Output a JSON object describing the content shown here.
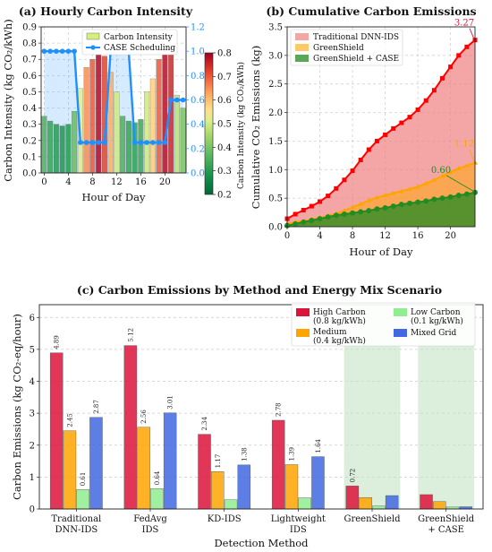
{
  "panel_a": {
    "title": "(a) Hourly Carbon Intensity",
    "xlabel": "Hour of Day",
    "ylabel": "Carbon Intensity (kg CO₂/kWh)",
    "colorbar_label": "Carbon Intensity (kg CO₂/kWh)",
    "legend": [
      "Carbon Intensity",
      "CASE Scheduling"
    ]
  },
  "panel_b": {
    "title": "(b) Cumulative Carbon Emissions",
    "xlabel": "Hour of Day",
    "ylabel": "Cumulative CO₂ Emissions (kg)",
    "legend": [
      "Traditional DNN-IDS",
      "GreenShield",
      "GreenShield + CASE"
    ],
    "annotations": [
      "3.27",
      "1.12",
      "0.60"
    ]
  },
  "panel_c": {
    "title": "(c) Carbon Emissions by Method and Energy Mix Scenario",
    "xlabel": "Detection Method",
    "ylabel": "Carbon Emissions (kg CO₂-eq/hour)",
    "legend": [
      "High Carbon",
      "(0.8 kg/kWh)",
      "Medium",
      "(0.4 kg/kWh)",
      "Low Carbon",
      "(0.1 kg/kWh)",
      "Mixed Grid"
    ],
    "methods_line1": [
      "Traditional",
      "FedAvg",
      "KD-IDS",
      "Lightweight",
      "GreenShield",
      "GreenShield"
    ],
    "methods_line2": [
      "DNN-IDS",
      "IDS",
      "",
      "IDS",
      "",
      "+ CASE"
    ]
  },
  "chart_data": [
    {
      "type": "bar",
      "x": [
        0,
        1,
        2,
        3,
        4,
        5,
        6,
        7,
        8,
        9,
        10,
        11,
        12,
        13,
        14,
        15,
        16,
        17,
        18,
        19,
        20,
        21,
        22,
        23
      ],
      "series": [
        {
          "name": "Carbon Intensity",
          "values": [
            0.35,
            0.32,
            0.3,
            0.29,
            0.3,
            0.38,
            0.52,
            0.65,
            0.7,
            0.79,
            0.72,
            0.62,
            0.5,
            0.35,
            0.32,
            0.31,
            0.33,
            0.5,
            0.58,
            0.7,
            0.78,
            0.75,
            0.48,
            0.4
          ]
        },
        {
          "name": "CASE Scheduling",
          "values": [
            1.0,
            1.0,
            1.0,
            1.0,
            1.0,
            1.0,
            0.25,
            0.25,
            0.25,
            0.25,
            0.25,
            1.0,
            1.0,
            1.0,
            1.0,
            0.25,
            0.25,
            0.25,
            0.25,
            0.25,
            0.25,
            0.6,
            0.6,
            0.6
          ]
        }
      ],
      "ylim": [
        0,
        0.9
      ],
      "y2lim": [
        0,
        1.2
      ],
      "colorbar_range": [
        0.2,
        0.8
      ],
      "xticks": [
        "0",
        "4",
        "8",
        "12",
        "16",
        "20"
      ],
      "yticks": [
        "0.0",
        "0.1",
        "0.2",
        "0.3",
        "0.4",
        "0.5",
        "0.6",
        "0.7",
        "0.8",
        "0.9"
      ],
      "y2ticks": [
        "0.0",
        "0.2",
        "0.4",
        "0.6",
        "0.8",
        "1.0",
        "1.2"
      ],
      "cbticks": [
        "0.2",
        "0.3",
        "0.4",
        "0.5",
        "0.6",
        "0.7",
        "0.8"
      ]
    },
    {
      "type": "area",
      "x": [
        0,
        1,
        2,
        3,
        4,
        5,
        6,
        7,
        8,
        9,
        10,
        11,
        12,
        13,
        14,
        15,
        16,
        17,
        18,
        19,
        20,
        21,
        22,
        23
      ],
      "series": [
        {
          "name": "Traditional DNN-IDS",
          "values": [
            0.14,
            0.22,
            0.29,
            0.36,
            0.44,
            0.54,
            0.67,
            0.82,
            0.98,
            1.17,
            1.35,
            1.5,
            1.61,
            1.72,
            1.82,
            1.92,
            2.05,
            2.21,
            2.39,
            2.6,
            2.8,
            3.0,
            3.15,
            3.27
          ]
        },
        {
          "name": "GreenShield",
          "values": [
            0.05,
            0.08,
            0.1,
            0.13,
            0.16,
            0.19,
            0.23,
            0.28,
            0.34,
            0.4,
            0.46,
            0.51,
            0.55,
            0.59,
            0.62,
            0.66,
            0.7,
            0.76,
            0.82,
            0.89,
            0.96,
            1.02,
            1.07,
            1.12
          ]
        },
        {
          "name": "GreenShield + CASE",
          "values": [
            0.02,
            0.05,
            0.08,
            0.11,
            0.14,
            0.17,
            0.2,
            0.22,
            0.24,
            0.26,
            0.28,
            0.31,
            0.33,
            0.36,
            0.39,
            0.41,
            0.43,
            0.45,
            0.48,
            0.5,
            0.52,
            0.55,
            0.57,
            0.6
          ]
        }
      ],
      "ylim": [
        0,
        3.5
      ],
      "xticks": [
        "0",
        "4",
        "8",
        "12",
        "16",
        "20"
      ],
      "yticks": [
        "0.0",
        "0.5",
        "1.0",
        "1.5",
        "2.0",
        "2.5",
        "3.0",
        "3.5"
      ]
    },
    {
      "type": "bar",
      "categories": [
        "Traditional DNN-IDS",
        "FedAvg IDS",
        "KD-IDS",
        "Lightweight IDS",
        "GreenShield",
        "GreenShield + CASE"
      ],
      "series": [
        {
          "name": "High Carbon (0.8 kg/kWh)",
          "values": [
            4.89,
            5.12,
            2.34,
            2.78,
            0.72,
            0.45
          ]
        },
        {
          "name": "Medium (0.4 kg/kWh)",
          "values": [
            2.45,
            2.56,
            1.17,
            1.39,
            0.36,
            0.23
          ]
        },
        {
          "name": "Low Carbon (0.1 kg/kWh)",
          "values": [
            0.61,
            0.64,
            0.29,
            0.35,
            0.09,
            0.06
          ]
        },
        {
          "name": "Mixed Grid",
          "values": [
            2.87,
            3.01,
            1.38,
            1.64,
            0.42,
            0.07
          ]
        }
      ],
      "data_labels": [
        [
          "4.89",
          "2.45",
          "0.61",
          "2.87"
        ],
        [
          "5.12",
          "2.56",
          "0.64",
          "3.01"
        ],
        [
          "2.34",
          "1.17",
          "",
          "1.38"
        ],
        [
          "2.78",
          "1.39",
          "",
          "1.64"
        ],
        [
          "0.72",
          "",
          "",
          ""
        ],
        [
          "",
          "",
          "",
          ""
        ]
      ],
      "highlighted": [
        "GreenShield",
        "GreenShield + CASE"
      ],
      "ylim": [
        0,
        6.4
      ],
      "yticks": [
        "0",
        "1",
        "2",
        "3",
        "4",
        "5",
        "6"
      ]
    }
  ],
  "colors": {
    "high": "#dc143c",
    "medium": "#ffa500",
    "low": "#90ee90",
    "mixed": "#4169e1",
    "case": "#1e90ff",
    "trad": "#f08080",
    "green": "#228b22",
    "highlight": "#bfe0bf"
  }
}
